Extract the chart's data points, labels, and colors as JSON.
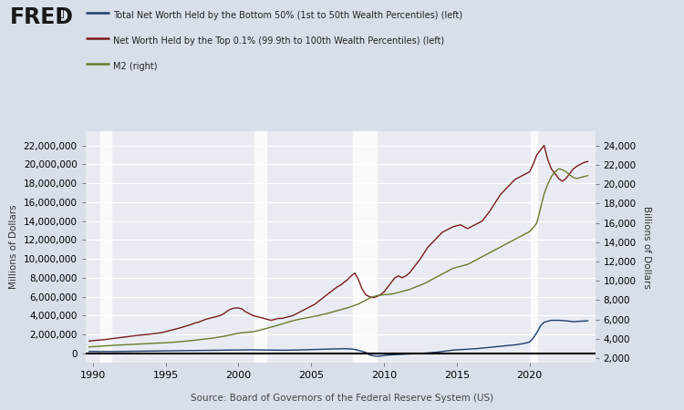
{
  "bg_color": "#d8dfe8",
  "plot_bg_color": "#e8ecf2",
  "legend_lines": [
    "Total Net Worth Held by the Bottom 50% (1st to 50th Wealth Percentiles) (left)",
    "Net Worth Held by the Top 0.1% (99.9th to 100th Wealth Percentiles) (left)",
    "M2 (right)"
  ],
  "legend_colors": [
    "#1f3d6b",
    "#7b1c1c",
    "#6b7a2a"
  ],
  "ylabel_left": "Millions of Dollars",
  "ylabel_right": "Billions of Dollars",
  "ylim_left": [
    -1000000,
    23500000
  ],
  "ylim_right": [
    1500,
    25500
  ],
  "yticks_left": [
    0,
    2000000,
    4000000,
    6000000,
    8000000,
    10000000,
    12000000,
    14000000,
    16000000,
    18000000,
    20000000,
    22000000
  ],
  "yticks_right": [
    2000,
    4000,
    6000,
    8000,
    10000,
    12000,
    14000,
    16000,
    18000,
    20000,
    22000,
    24000
  ],
  "xticks": [
    1990,
    1995,
    2000,
    2005,
    2010,
    2015,
    2020
  ],
  "xlim": [
    1989.5,
    2024.5
  ],
  "source_text": "Source: Board of Governors of the Federal Reserve System (US)",
  "recession_bands": [
    [
      1990.5,
      1991.3
    ],
    [
      2001.1,
      2001.9
    ],
    [
      2007.9,
      2009.5
    ],
    [
      2020.1,
      2020.5
    ]
  ],
  "years_bottom50": [
    1989.75,
    1990.0,
    1990.25,
    1990.5,
    1990.75,
    1991.0,
    1991.25,
    1991.5,
    1991.75,
    1992.0,
    1992.25,
    1992.5,
    1992.75,
    1993.0,
    1993.25,
    1993.5,
    1993.75,
    1994.0,
    1994.25,
    1994.5,
    1994.75,
    1995.0,
    1995.25,
    1995.5,
    1995.75,
    1996.0,
    1996.25,
    1996.5,
    1996.75,
    1997.0,
    1997.25,
    1997.5,
    1997.75,
    1998.0,
    1998.25,
    1998.5,
    1998.75,
    1999.0,
    1999.25,
    1999.5,
    1999.75,
    2000.0,
    2000.25,
    2000.5,
    2000.75,
    2001.0,
    2001.25,
    2001.5,
    2001.75,
    2002.0,
    2002.25,
    2002.5,
    2002.75,
    2003.0,
    2003.25,
    2003.5,
    2003.75,
    2004.0,
    2004.25,
    2004.5,
    2004.75,
    2005.0,
    2005.25,
    2005.5,
    2005.75,
    2006.0,
    2006.25,
    2006.5,
    2006.75,
    2007.0,
    2007.25,
    2007.5,
    2007.75,
    2008.0,
    2008.25,
    2008.5,
    2008.75,
    2009.0,
    2009.25,
    2009.5,
    2009.75,
    2010.0,
    2010.25,
    2010.5,
    2010.75,
    2011.0,
    2011.25,
    2011.5,
    2011.75,
    2012.0,
    2012.25,
    2012.5,
    2012.75,
    2013.0,
    2013.25,
    2013.5,
    2013.75,
    2014.0,
    2014.25,
    2014.5,
    2014.75,
    2015.0,
    2015.25,
    2015.5,
    2015.75,
    2016.0,
    2016.25,
    2016.5,
    2016.75,
    2017.0,
    2017.25,
    2017.5,
    2017.75,
    2018.0,
    2018.25,
    2018.5,
    2018.75,
    2019.0,
    2019.25,
    2019.5,
    2019.75,
    2020.0,
    2020.25,
    2020.5,
    2020.75,
    2021.0,
    2021.25,
    2021.5,
    2021.75,
    2022.0,
    2022.25,
    2022.5,
    2022.75,
    2023.0,
    2023.25,
    2023.5,
    2023.75,
    2024.0
  ],
  "bottom50": [
    200000,
    210000,
    200000,
    195000,
    205000,
    200000,
    195000,
    200000,
    205000,
    215000,
    220000,
    225000,
    230000,
    235000,
    240000,
    245000,
    250000,
    255000,
    260000,
    265000,
    270000,
    280000,
    285000,
    290000,
    295000,
    300000,
    305000,
    310000,
    315000,
    320000,
    325000,
    330000,
    335000,
    340000,
    345000,
    350000,
    355000,
    360000,
    365000,
    370000,
    375000,
    380000,
    385000,
    380000,
    375000,
    370000,
    360000,
    355000,
    350000,
    345000,
    340000,
    335000,
    330000,
    330000,
    335000,
    340000,
    345000,
    355000,
    365000,
    375000,
    385000,
    400000,
    415000,
    425000,
    440000,
    450000,
    460000,
    470000,
    480000,
    490000,
    495000,
    490000,
    470000,
    420000,
    310000,
    220000,
    100000,
    -150000,
    -250000,
    -300000,
    -280000,
    -220000,
    -180000,
    -160000,
    -140000,
    -120000,
    -100000,
    -80000,
    -60000,
    -40000,
    -20000,
    0,
    20000,
    50000,
    80000,
    110000,
    150000,
    200000,
    250000,
    300000,
    350000,
    380000,
    400000,
    420000,
    440000,
    460000,
    490000,
    520000,
    560000,
    600000,
    640000,
    680000,
    720000,
    760000,
    800000,
    840000,
    870000,
    900000,
    960000,
    1020000,
    1100000,
    1200000,
    1600000,
    2200000,
    2900000,
    3300000,
    3400000,
    3500000,
    3500000,
    3500000,
    3480000,
    3450000,
    3400000,
    3350000,
    3380000,
    3400000,
    3420000,
    3450000
  ],
  "years_top01": [
    1989.75,
    1990.0,
    1990.25,
    1990.5,
    1990.75,
    1991.0,
    1991.25,
    1991.5,
    1991.75,
    1992.0,
    1992.25,
    1992.5,
    1992.75,
    1993.0,
    1993.25,
    1993.5,
    1993.75,
    1994.0,
    1994.25,
    1994.5,
    1994.75,
    1995.0,
    1995.25,
    1995.5,
    1995.75,
    1996.0,
    1996.25,
    1996.5,
    1996.75,
    1997.0,
    1997.25,
    1997.5,
    1997.75,
    1998.0,
    1998.25,
    1998.5,
    1998.75,
    1999.0,
    1999.25,
    1999.5,
    1999.75,
    2000.0,
    2000.25,
    2000.5,
    2000.75,
    2001.0,
    2001.25,
    2001.5,
    2001.75,
    2002.0,
    2002.25,
    2002.5,
    2002.75,
    2003.0,
    2003.25,
    2003.5,
    2003.75,
    2004.0,
    2004.25,
    2004.5,
    2004.75,
    2005.0,
    2005.25,
    2005.5,
    2005.75,
    2006.0,
    2006.25,
    2006.5,
    2006.75,
    2007.0,
    2007.25,
    2007.5,
    2007.75,
    2008.0,
    2008.25,
    2008.5,
    2008.75,
    2009.0,
    2009.25,
    2009.5,
    2009.75,
    2010.0,
    2010.25,
    2010.5,
    2010.75,
    2011.0,
    2011.25,
    2011.5,
    2011.75,
    2012.0,
    2012.25,
    2012.5,
    2012.75,
    2013.0,
    2013.25,
    2013.5,
    2013.75,
    2014.0,
    2014.25,
    2014.5,
    2014.75,
    2015.0,
    2015.25,
    2015.5,
    2015.75,
    2016.0,
    2016.25,
    2016.5,
    2016.75,
    2017.0,
    2017.25,
    2017.5,
    2017.75,
    2018.0,
    2018.25,
    2018.5,
    2018.75,
    2019.0,
    2019.25,
    2019.5,
    2019.75,
    2020.0,
    2020.25,
    2020.5,
    2020.75,
    2021.0,
    2021.25,
    2021.5,
    2021.75,
    2022.0,
    2022.25,
    2022.5,
    2022.75,
    2023.0,
    2023.25,
    2023.5,
    2023.75,
    2024.0
  ],
  "top01": [
    1300000,
    1350000,
    1380000,
    1400000,
    1450000,
    1500000,
    1550000,
    1600000,
    1650000,
    1700000,
    1750000,
    1800000,
    1850000,
    1900000,
    1940000,
    1970000,
    2000000,
    2050000,
    2100000,
    2150000,
    2200000,
    2300000,
    2400000,
    2500000,
    2600000,
    2700000,
    2820000,
    2950000,
    3050000,
    3200000,
    3300000,
    3450000,
    3600000,
    3700000,
    3800000,
    3900000,
    4000000,
    4200000,
    4500000,
    4700000,
    4800000,
    4800000,
    4700000,
    4400000,
    4200000,
    4000000,
    3900000,
    3800000,
    3700000,
    3600000,
    3500000,
    3600000,
    3700000,
    3700000,
    3800000,
    3900000,
    4000000,
    4200000,
    4400000,
    4600000,
    4800000,
    5000000,
    5200000,
    5500000,
    5800000,
    6100000,
    6400000,
    6700000,
    7000000,
    7200000,
    7500000,
    7800000,
    8200000,
    8500000,
    7800000,
    6800000,
    6200000,
    6000000,
    5900000,
    6000000,
    6200000,
    6500000,
    7000000,
    7500000,
    8000000,
    8200000,
    8000000,
    8200000,
    8500000,
    9000000,
    9500000,
    10000000,
    10600000,
    11200000,
    11600000,
    12000000,
    12400000,
    12800000,
    13000000,
    13200000,
    13400000,
    13500000,
    13600000,
    13400000,
    13200000,
    13400000,
    13600000,
    13800000,
    14000000,
    14500000,
    15000000,
    15600000,
    16200000,
    16800000,
    17200000,
    17600000,
    18000000,
    18400000,
    18600000,
    18800000,
    19000000,
    19200000,
    20000000,
    21000000,
    21500000,
    22000000,
    20500000,
    19500000,
    19000000,
    18500000,
    18200000,
    18500000,
    19000000,
    19500000,
    19800000,
    20000000,
    20200000,
    20300000
  ],
  "years_m2": [
    1989.75,
    1990.0,
    1990.25,
    1990.5,
    1990.75,
    1991.0,
    1991.25,
    1991.5,
    1991.75,
    1992.0,
    1992.25,
    1992.5,
    1992.75,
    1993.0,
    1993.25,
    1993.5,
    1993.75,
    1994.0,
    1994.25,
    1994.5,
    1994.75,
    1995.0,
    1995.25,
    1995.5,
    1995.75,
    1996.0,
    1996.25,
    1996.5,
    1996.75,
    1997.0,
    1997.25,
    1997.5,
    1997.75,
    1998.0,
    1998.25,
    1998.5,
    1998.75,
    1999.0,
    1999.25,
    1999.5,
    1999.75,
    2000.0,
    2000.25,
    2000.5,
    2000.75,
    2001.0,
    2001.25,
    2001.5,
    2001.75,
    2002.0,
    2002.25,
    2002.5,
    2002.75,
    2003.0,
    2003.25,
    2003.5,
    2003.75,
    2004.0,
    2004.25,
    2004.5,
    2004.75,
    2005.0,
    2005.25,
    2005.5,
    2005.75,
    2006.0,
    2006.25,
    2006.5,
    2006.75,
    2007.0,
    2007.25,
    2007.5,
    2007.75,
    2008.0,
    2008.25,
    2008.5,
    2008.75,
    2009.0,
    2009.25,
    2009.5,
    2009.75,
    2010.0,
    2010.25,
    2010.5,
    2010.75,
    2011.0,
    2011.25,
    2011.5,
    2011.75,
    2012.0,
    2012.25,
    2012.5,
    2012.75,
    2013.0,
    2013.25,
    2013.5,
    2013.75,
    2014.0,
    2014.25,
    2014.5,
    2014.75,
    2015.0,
    2015.25,
    2015.5,
    2015.75,
    2016.0,
    2016.25,
    2016.5,
    2016.75,
    2017.0,
    2017.25,
    2017.5,
    2017.75,
    2018.0,
    2018.25,
    2018.5,
    2018.75,
    2019.0,
    2019.25,
    2019.5,
    2019.75,
    2020.0,
    2020.25,
    2020.5,
    2020.75,
    2021.0,
    2021.25,
    2021.5,
    2021.75,
    2022.0,
    2022.25,
    2022.5,
    2022.75,
    2023.0,
    2023.25,
    2023.5,
    2023.75,
    2024.0
  ],
  "m2": [
    3150,
    3180,
    3200,
    3220,
    3250,
    3280,
    3300,
    3320,
    3340,
    3360,
    3380,
    3400,
    3420,
    3450,
    3470,
    3490,
    3510,
    3530,
    3540,
    3550,
    3560,
    3580,
    3600,
    3630,
    3660,
    3690,
    3720,
    3760,
    3800,
    3840,
    3880,
    3930,
    3980,
    4020,
    4060,
    4120,
    4180,
    4250,
    4330,
    4420,
    4500,
    4570,
    4620,
    4650,
    4680,
    4720,
    4800,
    4900,
    5000,
    5100,
    5200,
    5300,
    5420,
    5540,
    5650,
    5760,
    5870,
    5960,
    6040,
    6110,
    6180,
    6250,
    6320,
    6400,
    6490,
    6580,
    6680,
    6780,
    6890,
    7000,
    7100,
    7200,
    7330,
    7450,
    7600,
    7800,
    8000,
    8200,
    8350,
    8450,
    8520,
    8560,
    8580,
    8620,
    8700,
    8800,
    8900,
    9000,
    9100,
    9250,
    9400,
    9550,
    9700,
    9900,
    10100,
    10300,
    10500,
    10700,
    10900,
    11100,
    11300,
    11400,
    11500,
    11600,
    11700,
    11900,
    12100,
    12300,
    12500,
    12700,
    12900,
    13100,
    13300,
    13500,
    13700,
    13900,
    14100,
    14300,
    14500,
    14700,
    14900,
    15100,
    15500,
    16000,
    17500,
    19000,
    20000,
    20800,
    21300,
    21600,
    21500,
    21300,
    21000,
    20700,
    20600,
    20700,
    20800,
    20900
  ]
}
